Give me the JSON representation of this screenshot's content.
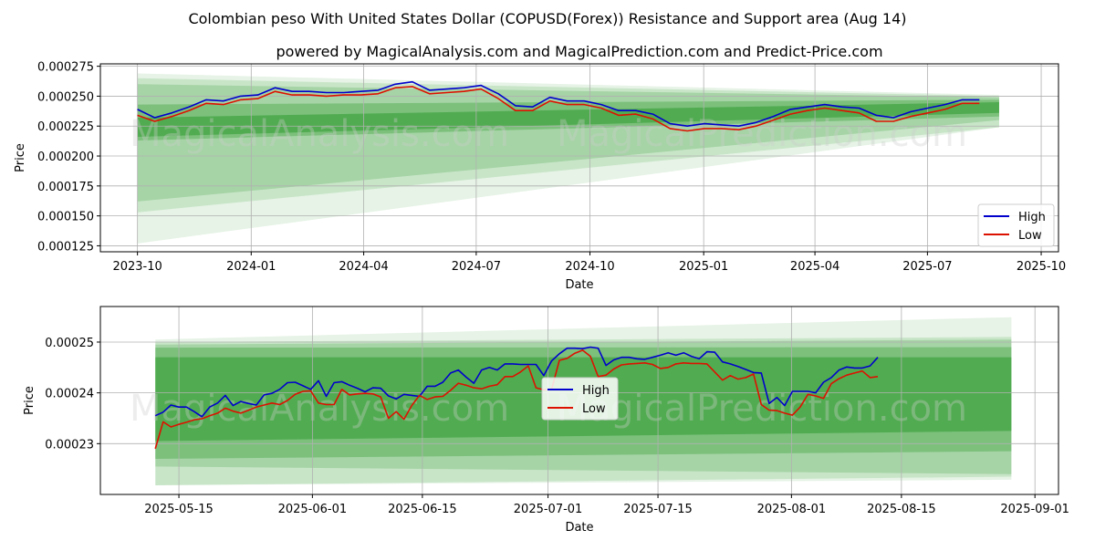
{
  "title": "Colombian peso With United States Dollar (COPUSD(Forex)) Resistance and Support area (Aug 14)",
  "subtitle": "powered by MagicalAnalysis.com and MagicalPrediction.com and Predict-Price.com",
  "watermarks": [
    "MagicalAnalysis.com",
    "MagicalPrediction.com"
  ],
  "colors": {
    "high": "#0000cc",
    "low": "#dd1100",
    "band": "#2e9a2e"
  },
  "chart_data": [
    {
      "type": "line",
      "title": "",
      "xlabel": "Date",
      "ylabel": "Price",
      "x_start": "2023-10-01",
      "x_end": "2025-08-12",
      "x_ticks": [
        "2023-10",
        "2024-01",
        "2024-04",
        "2024-07",
        "2024-10",
        "2025-01",
        "2025-04",
        "2025-07",
        "2025-10"
      ],
      "y_ticks": [
        "0.000125",
        "0.000150",
        "0.000175",
        "0.000200",
        "0.000225",
        "0.000250",
        "0.000275"
      ],
      "ylim": [
        0.00012,
        0.000277
      ],
      "grid": true,
      "legend": "lower right",
      "series": [
        {
          "name": "High",
          "values": [
            0.000239,
            0.000232,
            0.000236,
            0.000241,
            0.000247,
            0.000246,
            0.00025,
            0.000251,
            0.000257,
            0.000254,
            0.000254,
            0.000253,
            0.000253,
            0.000254,
            0.000255,
            0.00026,
            0.000262,
            0.000255,
            0.000256,
            0.000257,
            0.000259,
            0.000252,
            0.000242,
            0.000241,
            0.000249,
            0.000246,
            0.000246,
            0.000243,
            0.000238,
            0.000238,
            0.000235,
            0.000227,
            0.000225,
            0.000227,
            0.000226,
            0.000225,
            0.000228,
            0.000233,
            0.000239,
            0.000241,
            0.000243,
            0.000241,
            0.00024,
            0.000234,
            0.000232,
            0.000237,
            0.00024,
            0.000243,
            0.000247,
            0.000247
          ]
        },
        {
          "name": "Low",
          "values": [
            0.000234,
            0.000229,
            0.000233,
            0.000238,
            0.000244,
            0.000243,
            0.000247,
            0.000248,
            0.000254,
            0.000251,
            0.000251,
            0.00025,
            0.000251,
            0.000251,
            0.000252,
            0.000257,
            0.000258,
            0.000252,
            0.000253,
            0.000254,
            0.000256,
            0.000248,
            0.000238,
            0.000238,
            0.000246,
            0.000243,
            0.000243,
            0.00024,
            0.000234,
            0.000235,
            0.000231,
            0.000223,
            0.000221,
            0.000223,
            0.000223,
            0.000222,
            0.000225,
            0.00023,
            0.000235,
            0.000238,
            0.00024,
            0.000238,
            0.000236,
            0.000229,
            0.000229,
            0.000233,
            0.000236,
            0.000239,
            0.000244,
            0.000244
          ]
        }
      ],
      "bands": [
        {
          "x": [
            "2023-10-01",
            "2025-08-28"
          ],
          "upper": [
            0.000269,
            0.000251
          ],
          "lower": [
            0.000127,
            0.000224
          ],
          "opacity": 0.12
        },
        {
          "x": [
            "2023-10-01",
            "2025-08-28"
          ],
          "upper": [
            0.000265,
            0.00025
          ],
          "lower": [
            0.000153,
            0.000224
          ],
          "opacity": 0.16
        },
        {
          "x": [
            "2023-10-01",
            "2025-08-28"
          ],
          "upper": [
            0.00026,
            0.000249
          ],
          "lower": [
            0.000162,
            0.00023
          ],
          "opacity": 0.22
        },
        {
          "x": [
            "2023-10-01",
            "2025-08-28"
          ],
          "upper": [
            0.000243,
            0.000247
          ],
          "lower": [
            0.000213,
            0.000233
          ],
          "opacity": 0.35
        },
        {
          "x": [
            "2023-10-01",
            "2025-08-28"
          ],
          "upper": [
            0.000232,
            0.000245
          ],
          "lower": [
            0.000216,
            0.000236
          ],
          "opacity": 0.55
        }
      ]
    },
    {
      "type": "line",
      "title": "",
      "xlabel": "Date",
      "ylabel": "Price",
      "x_start": "2025-05-12",
      "x_end": "2025-08-12",
      "x_ticks": [
        "2025-05-15",
        "2025-06-01",
        "2025-06-15",
        "2025-07-01",
        "2025-07-15",
        "2025-08-01",
        "2025-08-15",
        "2025-09-01"
      ],
      "y_ticks": [
        "0.00023",
        "0.00024",
        "0.00025"
      ],
      "ylim": [
        0.00022,
        0.000257
      ],
      "grid": true,
      "legend": "center",
      "series": [
        {
          "name": "High",
          "values": [
            0.0002355,
            0.0002362,
            0.0002376,
            0.0002372,
            0.0002372,
            0.0002363,
            0.0002353,
            0.0002372,
            0.000238,
            0.0002395,
            0.0002375,
            0.0002383,
            0.0002379,
            0.0002376,
            0.0002396,
            0.0002399,
            0.0002407,
            0.000242,
            0.0002421,
            0.0002414,
            0.0002407,
            0.0002424,
            0.0002393,
            0.000242,
            0.0002422,
            0.0002415,
            0.0002409,
            0.0002402,
            0.000241,
            0.0002409,
            0.0002394,
            0.0002388,
            0.0002397,
            0.0002395,
            0.0002393,
            0.0002413,
            0.0002413,
            0.0002421,
            0.0002439,
            0.0002445,
            0.0002431,
            0.0002419,
            0.0002445,
            0.000245,
            0.0002445,
            0.0002457,
            0.0002457,
            0.0002456,
            0.0002456,
            0.0002456,
            0.0002434,
            0.0002463,
            0.0002477,
            0.0002488,
            0.0002488,
            0.0002487,
            0.000249,
            0.0002488,
            0.0002454,
            0.0002465,
            0.000247,
            0.000247,
            0.0002467,
            0.0002466,
            0.000247,
            0.0002474,
            0.0002479,
            0.0002474,
            0.0002479,
            0.0002472,
            0.0002467,
            0.0002481,
            0.000248,
            0.0002461,
            0.0002457,
            0.0002452,
            0.0002446,
            0.000244,
            0.0002439,
            0.0002379,
            0.0002391,
            0.0002375,
            0.0002403,
            0.0002403,
            0.0002403,
            0.00024,
            0.0002421,
            0.000243,
            0.0002445,
            0.0002451,
            0.0002449,
            0.0002449,
            0.0002453,
            0.000247
          ]
        },
        {
          "name": "Low",
          "values": [
            0.000229,
            0.0002343,
            0.0002333,
            0.0002338,
            0.0002342,
            0.0002347,
            0.0002349,
            0.0002355,
            0.000236,
            0.000237,
            0.0002364,
            0.000236,
            0.0002366,
            0.0002372,
            0.0002376,
            0.000238,
            0.0002377,
            0.0002385,
            0.0002397,
            0.0002403,
            0.0002404,
            0.000238,
            0.0002377,
            0.0002377,
            0.0002407,
            0.0002396,
            0.0002398,
            0.0002399,
            0.0002398,
            0.0002392,
            0.000235,
            0.0002363,
            0.0002348,
            0.0002375,
            0.0002395,
            0.0002387,
            0.0002392,
            0.0002393,
            0.0002405,
            0.0002419,
            0.0002415,
            0.000241,
            0.0002408,
            0.0002413,
            0.0002416,
            0.0002432,
            0.0002432,
            0.0002441,
            0.0002453,
            0.000241,
            0.0002406,
            0.0002407,
            0.0002464,
            0.0002468,
            0.0002478,
            0.0002484,
            0.0002472,
            0.0002432,
            0.0002435,
            0.0002447,
            0.0002455,
            0.0002457,
            0.0002458,
            0.0002459,
            0.0002456,
            0.0002448,
            0.000245,
            0.0002457,
            0.0002459,
            0.0002458,
            0.0002458,
            0.0002457,
            0.0002441,
            0.0002425,
            0.0002434,
            0.0002427,
            0.000243,
            0.0002437,
            0.0002377,
            0.0002366,
            0.0002365,
            0.000236,
            0.0002356,
            0.0002372,
            0.0002397,
            0.0002394,
            0.0002389,
            0.0002418,
            0.0002428,
            0.0002435,
            0.0002439,
            0.0002443,
            0.000243,
            0.0002432
          ]
        }
      ],
      "bands": [
        {
          "x": [
            "2025-05-12",
            "2025-08-29"
          ],
          "upper": [
            0.0002505,
            0.0002549
          ],
          "lower": [
            0.0002218,
            0.0002229
          ],
          "opacity": 0.12
        },
        {
          "x": [
            "2025-05-12",
            "2025-08-29"
          ],
          "upper": [
            0.00025,
            0.000251
          ],
          "lower": [
            0.0002218,
            0.0002235
          ],
          "opacity": 0.16
        },
        {
          "x": [
            "2025-05-12",
            "2025-08-29"
          ],
          "upper": [
            0.0002495,
            0.0002505
          ],
          "lower": [
            0.0002255,
            0.000224
          ],
          "opacity": 0.22
        },
        {
          "x": [
            "2025-05-12",
            "2025-08-29"
          ],
          "upper": [
            0.0002489,
            0.000249
          ],
          "lower": [
            0.000227,
            0.0002285
          ],
          "opacity": 0.35
        },
        {
          "x": [
            "2025-05-12",
            "2025-08-29"
          ],
          "upper": [
            0.000247,
            0.000247
          ],
          "lower": [
            0.0002305,
            0.0002325
          ],
          "opacity": 0.55
        }
      ]
    }
  ]
}
